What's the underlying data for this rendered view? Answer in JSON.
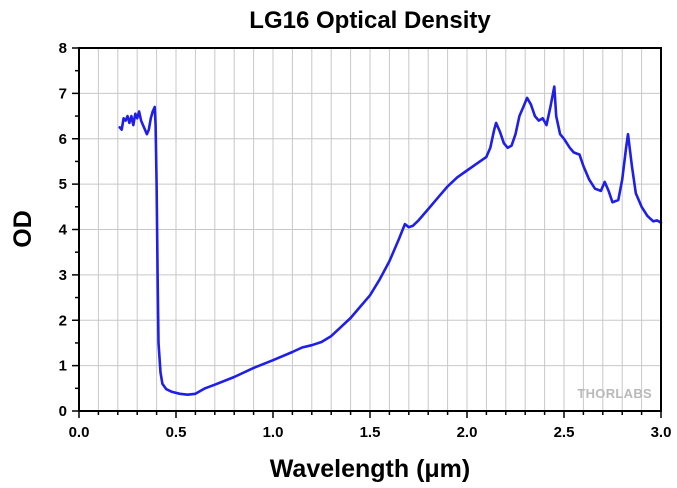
{
  "chart_data": {
    "type": "line",
    "title": "LG16 Optical Density",
    "xlabel": "Wavelength (μm)",
    "ylabel": "OD",
    "xlim": [
      0.0,
      3.0
    ],
    "ylim": [
      0,
      8
    ],
    "x_ticks": [
      "0.0",
      "0.5",
      "1.0",
      "1.5",
      "2.0",
      "2.5",
      "3.0"
    ],
    "y_ticks": [
      "0",
      "1",
      "2",
      "3",
      "4",
      "5",
      "6",
      "7",
      "8"
    ],
    "grid": true,
    "watermark": "THORLABS",
    "series": [
      {
        "color": "#1f1fe6",
        "points": [
          [
            0.21,
            6.25
          ],
          [
            0.22,
            6.2
          ],
          [
            0.23,
            6.45
          ],
          [
            0.24,
            6.4
          ],
          [
            0.25,
            6.5
          ],
          [
            0.26,
            6.35
          ],
          [
            0.27,
            6.5
          ],
          [
            0.28,
            6.3
          ],
          [
            0.29,
            6.55
          ],
          [
            0.3,
            6.45
          ],
          [
            0.31,
            6.6
          ],
          [
            0.32,
            6.4
          ],
          [
            0.33,
            6.3
          ],
          [
            0.34,
            6.2
          ],
          [
            0.35,
            6.1
          ],
          [
            0.36,
            6.2
          ],
          [
            0.37,
            6.45
          ],
          [
            0.38,
            6.6
          ],
          [
            0.39,
            6.7
          ],
          [
            0.395,
            6.3
          ],
          [
            0.4,
            5.0
          ],
          [
            0.405,
            3.0
          ],
          [
            0.41,
            1.5
          ],
          [
            0.42,
            0.85
          ],
          [
            0.43,
            0.6
          ],
          [
            0.45,
            0.48
          ],
          [
            0.48,
            0.42
          ],
          [
            0.52,
            0.38
          ],
          [
            0.56,
            0.36
          ],
          [
            0.6,
            0.38
          ],
          [
            0.65,
            0.5
          ],
          [
            0.7,
            0.58
          ],
          [
            0.8,
            0.75
          ],
          [
            0.9,
            0.95
          ],
          [
            1.0,
            1.12
          ],
          [
            1.1,
            1.3
          ],
          [
            1.15,
            1.4
          ],
          [
            1.2,
            1.45
          ],
          [
            1.25,
            1.52
          ],
          [
            1.3,
            1.65
          ],
          [
            1.35,
            1.85
          ],
          [
            1.4,
            2.05
          ],
          [
            1.45,
            2.3
          ],
          [
            1.5,
            2.55
          ],
          [
            1.55,
            2.9
          ],
          [
            1.6,
            3.3
          ],
          [
            1.65,
            3.8
          ],
          [
            1.68,
            4.12
          ],
          [
            1.7,
            4.05
          ],
          [
            1.72,
            4.08
          ],
          [
            1.75,
            4.2
          ],
          [
            1.8,
            4.45
          ],
          [
            1.85,
            4.7
          ],
          [
            1.9,
            4.95
          ],
          [
            1.95,
            5.15
          ],
          [
            2.0,
            5.3
          ],
          [
            2.05,
            5.45
          ],
          [
            2.1,
            5.6
          ],
          [
            2.12,
            5.8
          ],
          [
            2.14,
            6.2
          ],
          [
            2.15,
            6.35
          ],
          [
            2.17,
            6.15
          ],
          [
            2.19,
            5.9
          ],
          [
            2.21,
            5.8
          ],
          [
            2.23,
            5.85
          ],
          [
            2.25,
            6.1
          ],
          [
            2.27,
            6.5
          ],
          [
            2.29,
            6.7
          ],
          [
            2.31,
            6.9
          ],
          [
            2.33,
            6.75
          ],
          [
            2.35,
            6.5
          ],
          [
            2.37,
            6.4
          ],
          [
            2.39,
            6.45
          ],
          [
            2.41,
            6.3
          ],
          [
            2.43,
            6.7
          ],
          [
            2.45,
            7.15
          ],
          [
            2.46,
            6.5
          ],
          [
            2.48,
            6.1
          ],
          [
            2.5,
            6.0
          ],
          [
            2.53,
            5.8
          ],
          [
            2.55,
            5.7
          ],
          [
            2.58,
            5.65
          ],
          [
            2.6,
            5.4
          ],
          [
            2.63,
            5.1
          ],
          [
            2.66,
            4.9
          ],
          [
            2.69,
            4.85
          ],
          [
            2.71,
            5.05
          ],
          [
            2.73,
            4.85
          ],
          [
            2.75,
            4.6
          ],
          [
            2.78,
            4.65
          ],
          [
            2.8,
            5.1
          ],
          [
            2.82,
            5.8
          ],
          [
            2.83,
            6.1
          ],
          [
            2.85,
            5.4
          ],
          [
            2.87,
            4.8
          ],
          [
            2.9,
            4.5
          ],
          [
            2.93,
            4.3
          ],
          [
            2.96,
            4.18
          ],
          [
            2.98,
            4.2
          ],
          [
            3.0,
            4.15
          ]
        ]
      }
    ]
  }
}
